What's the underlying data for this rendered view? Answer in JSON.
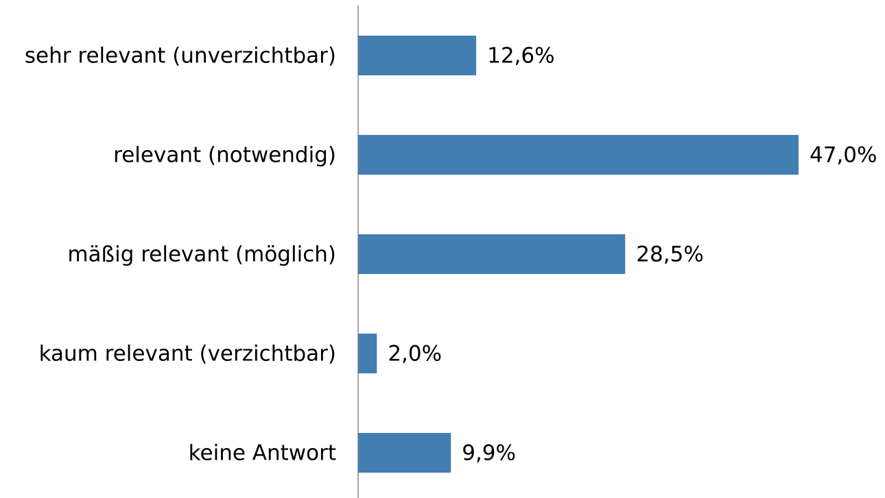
{
  "chart_data": {
    "type": "bar",
    "orientation": "horizontal",
    "categories": [
      "sehr relevant (unverzichtbar)",
      "relevant (notwendig)",
      "mäßig relevant (möglich)",
      "kaum relevant (verzichtbar)",
      "keine Antwort"
    ],
    "values": [
      12.6,
      47.0,
      28.5,
      2.0,
      9.9
    ],
    "value_labels": [
      "12,6%",
      "47,0%",
      "28,5%",
      "2,0%",
      "9,9%"
    ],
    "color": "#427eb1"
  }
}
